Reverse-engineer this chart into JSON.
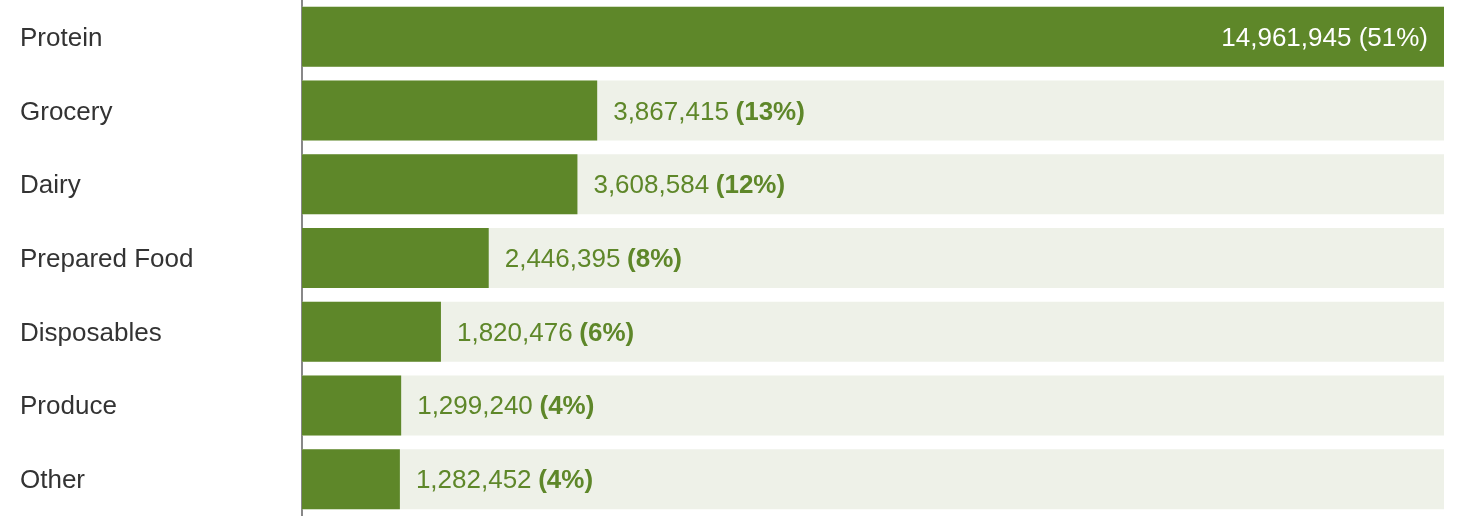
{
  "chart_data": {
    "type": "bar",
    "orientation": "horizontal",
    "categories": [
      "Protein",
      "Grocery",
      "Dairy",
      "Prepared Food",
      "Disposables",
      "Produce",
      "Other"
    ],
    "values": [
      14961945,
      3867415,
      3608584,
      2446395,
      1820476,
      1299240,
      1282452
    ],
    "value_labels": [
      "14,961,945 (51%)",
      "3,867,415 (13%)",
      "3,608,584 (12%)",
      "2,446,395 (8%)",
      "1,820,476 (6%)",
      "1,299,240 (4%)",
      "1,282,452 (4%)"
    ],
    "color": "#5e8729",
    "xlim": [
      0,
      14961945
    ],
    "tick_labels": "y"
  }
}
